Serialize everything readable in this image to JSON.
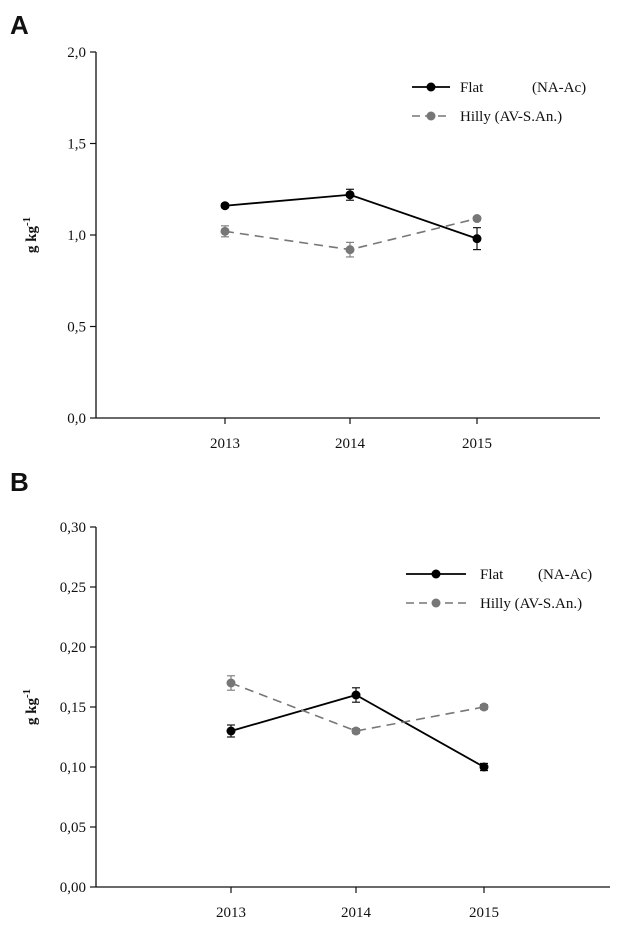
{
  "chart_data": [
    {
      "panel": "A",
      "type": "line",
      "x": [
        "2013",
        "2014",
        "2015"
      ],
      "ylabel": "g kg",
      "ylabel_sup": "-1",
      "ylim": [
        0,
        2.0
      ],
      "yticks": [
        "0,0",
        "0,5",
        "1,0",
        "1,5",
        "2,0"
      ],
      "ytick_values": [
        0,
        0.5,
        1.0,
        1.5,
        2.0
      ],
      "legend_position": "top-right",
      "grid": false,
      "series": [
        {
          "name": "Flat",
          "tag": "(NA-Ac)",
          "values": [
            1.16,
            1.22,
            0.98
          ],
          "errors": [
            0.01,
            0.03,
            0.06
          ],
          "color": "#000000",
          "dashed": false
        },
        {
          "name": "Hilly (AV-S.An.)",
          "tag": "",
          "values": [
            1.02,
            0.92,
            1.09
          ],
          "errors": [
            0.03,
            0.04,
            0.01
          ],
          "color": "#777777",
          "dashed": true
        }
      ]
    },
    {
      "panel": "B",
      "type": "line",
      "x": [
        "2013",
        "2014",
        "2015"
      ],
      "ylabel": "g kg",
      "ylabel_sup": "-1",
      "ylim": [
        0,
        0.3
      ],
      "yticks": [
        "0,00",
        "0,05",
        "0,10",
        "0,15",
        "0,20",
        "0,25",
        "0,30"
      ],
      "ytick_values": [
        0,
        0.05,
        0.1,
        0.15,
        0.2,
        0.25,
        0.3
      ],
      "legend_position": "top-right",
      "grid": false,
      "series": [
        {
          "name": "Flat",
          "tag": "(NA-Ac)",
          "values": [
            0.13,
            0.16,
            0.1
          ],
          "errors": [
            0.005,
            0.006,
            0.003
          ],
          "color": "#000000",
          "dashed": false
        },
        {
          "name": "Hilly (AV-S.An.)",
          "tag": "",
          "values": [
            0.17,
            0.13,
            0.15
          ],
          "errors": [
            0.006,
            0.002,
            0.002
          ],
          "color": "#777777",
          "dashed": true
        }
      ]
    }
  ],
  "panels": {
    "a_label": "A",
    "b_label": "B"
  }
}
